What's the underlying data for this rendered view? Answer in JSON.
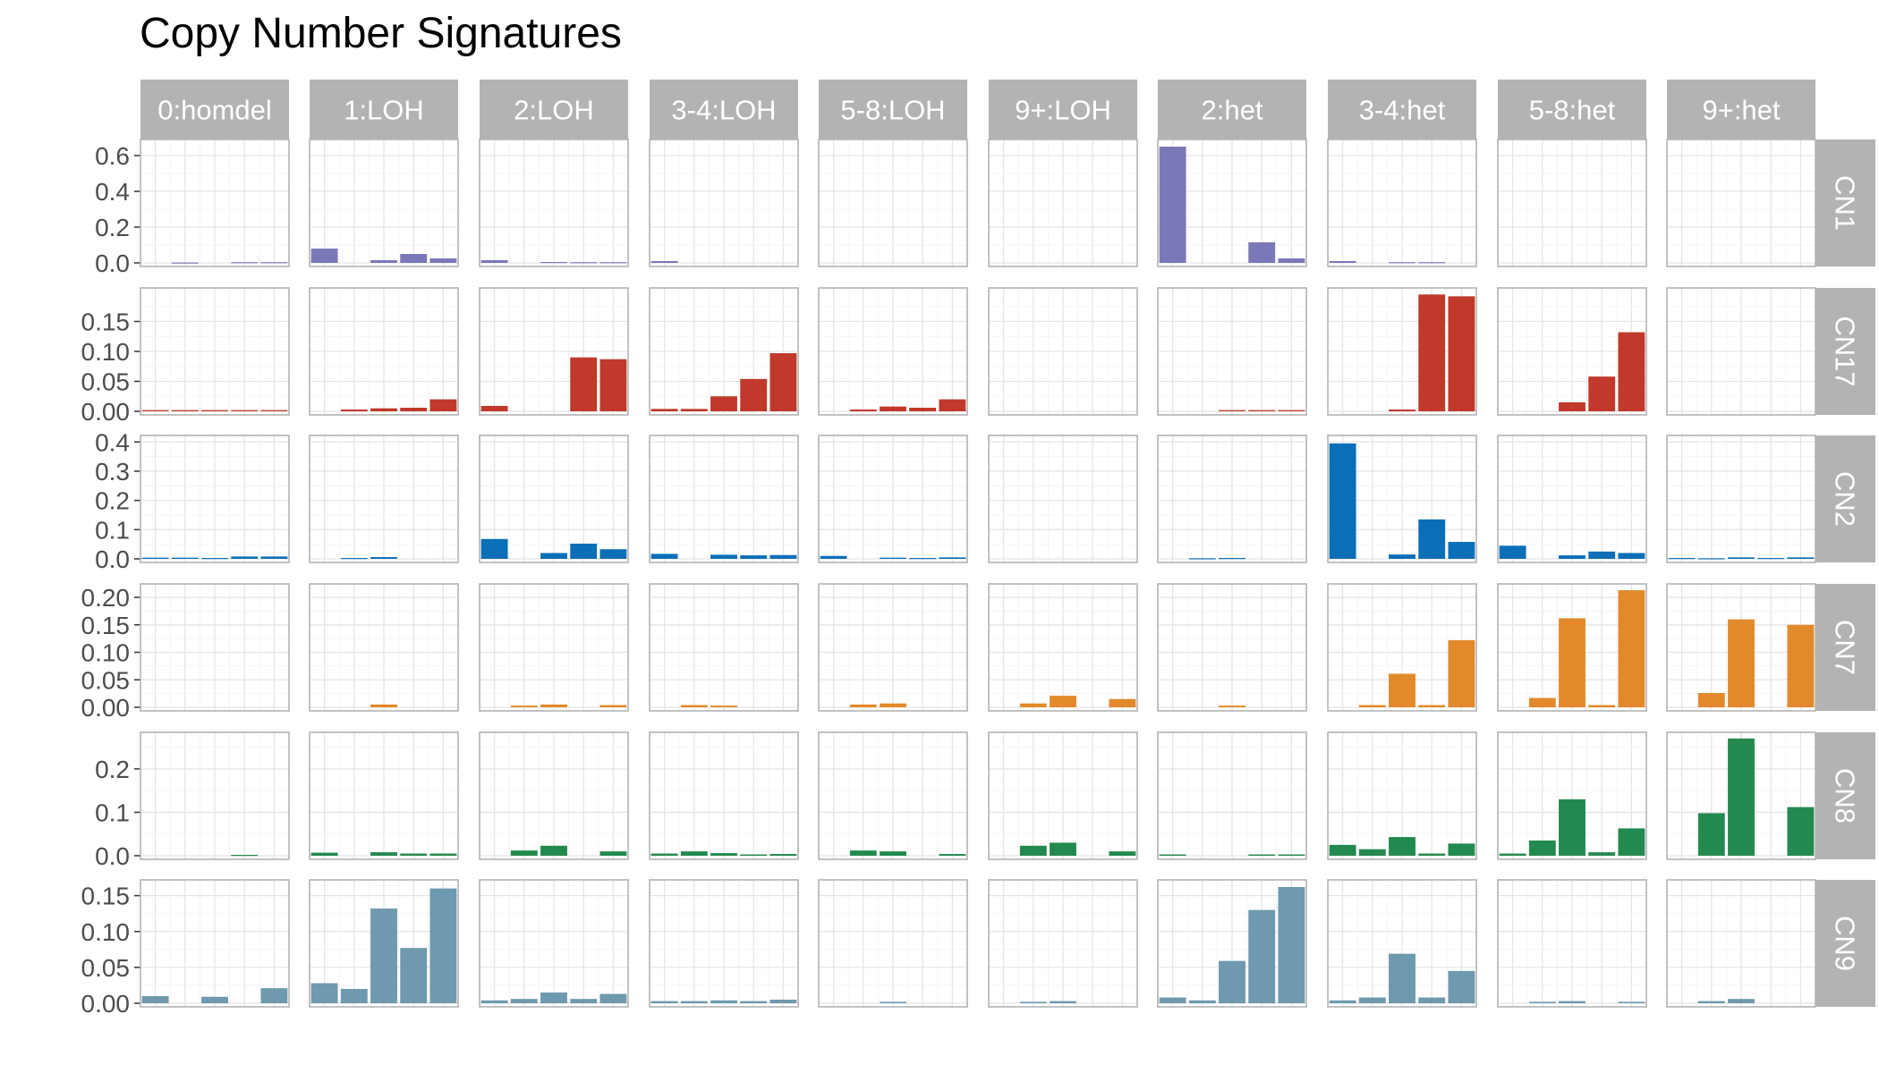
{
  "chart_data": {
    "type": "bar",
    "title": "Copy Number Signatures",
    "xlabel": "",
    "ylabel": "",
    "grid": true,
    "legend": "none",
    "panel_columns": [
      "0:homdel",
      "1:LOH",
      "2:LOH",
      "3-4:LOH",
      "5-8:LOH",
      "9+:LOH",
      "2:het",
      "3-4:het",
      "5-8:het",
      "9+:het"
    ],
    "rows": [
      {
        "name": "CN1",
        "color": "#7b78b8",
        "ylim": [
          0,
          0.67
        ],
        "ticks": [
          0,
          0.2,
          0.4,
          0.6
        ],
        "tick_labels": [
          "0.0",
          "0.2",
          "0.4",
          "0.6"
        ],
        "panels": [
          [
            0,
            0.002,
            0,
            0.004,
            0.004
          ],
          [
            0.08,
            0,
            0.015,
            0.05,
            0.025
          ],
          [
            0.015,
            0,
            0.005,
            0.004,
            0.004
          ],
          [
            0.01,
            0,
            0,
            0,
            0
          ],
          [
            0,
            0,
            0,
            0,
            0
          ],
          [
            0,
            0,
            0,
            0,
            0
          ],
          [
            0.65,
            0,
            0,
            0.115,
            0.025
          ],
          [
            0.01,
            0,
            0.004,
            0.004,
            0
          ],
          [
            0,
            0,
            0,
            0,
            0
          ],
          [
            0,
            0,
            0,
            0,
            0
          ]
        ]
      },
      {
        "name": "CN17",
        "color": "#c0392b",
        "ylim": [
          0,
          0.2
        ],
        "ticks": [
          0,
          0.05,
          0.1,
          0.15
        ],
        "tick_labels": [
          "0.00",
          "0.05",
          "0.10",
          "0.15"
        ],
        "panels": [
          [
            0.002,
            0.002,
            0.002,
            0.002,
            0.002
          ],
          [
            0,
            0.003,
            0.005,
            0.006,
            0.02
          ],
          [
            0.009,
            0,
            0,
            0.09,
            0.087
          ],
          [
            0.004,
            0.004,
            0.025,
            0.054,
            0.097
          ],
          [
            0,
            0.003,
            0.008,
            0.006,
            0.02
          ],
          [
            0,
            0,
            0,
            0,
            0
          ],
          [
            0,
            0,
            0.002,
            0.002,
            0.002
          ],
          [
            0,
            0,
            0.003,
            0.195,
            0.192
          ],
          [
            0,
            0,
            0.015,
            0.058,
            0.132
          ],
          [
            0,
            0,
            0,
            0,
            0
          ]
        ]
      },
      {
        "name": "CN2",
        "color": "#0b6fb8",
        "ylim": [
          0,
          0.41
        ],
        "ticks": [
          0,
          0.1,
          0.2,
          0.3,
          0.4
        ],
        "tick_labels": [
          "0.0",
          "0.1",
          "0.2",
          "0.3",
          "0.4"
        ],
        "panels": [
          [
            0.004,
            0.004,
            0.003,
            0.008,
            0.008
          ],
          [
            0,
            0.003,
            0.006,
            0,
            0
          ],
          [
            0.068,
            0,
            0.02,
            0.052,
            0.033
          ],
          [
            0.017,
            0,
            0.014,
            0.012,
            0.013
          ],
          [
            0.01,
            0,
            0.004,
            0.003,
            0.005
          ],
          [
            0,
            0,
            0,
            0,
            0
          ],
          [
            0,
            0.002,
            0.003,
            0,
            0
          ],
          [
            0.395,
            0,
            0.015,
            0.135,
            0.058
          ],
          [
            0.045,
            0,
            0.012,
            0.025,
            0.02
          ],
          [
            0.003,
            0.002,
            0.005,
            0.003,
            0.005
          ]
        ]
      },
      {
        "name": "CN7",
        "color": "#e28a2b",
        "ylim": [
          0,
          0.218
        ],
        "ticks": [
          0,
          0.05,
          0.1,
          0.15,
          0.2
        ],
        "tick_labels": [
          "0.00",
          "0.05",
          "0.10",
          "0.15",
          "0.20"
        ],
        "panels": [
          [
            0,
            0,
            0,
            0,
            0
          ],
          [
            0,
            0,
            0.005,
            0,
            0
          ],
          [
            0,
            0.003,
            0.005,
            0,
            0.004
          ],
          [
            0,
            0.004,
            0.003,
            0,
            0
          ],
          [
            0,
            0.005,
            0.007,
            0,
            0
          ],
          [
            0,
            0.007,
            0.021,
            0,
            0.015
          ],
          [
            0,
            0,
            0.003,
            0,
            0
          ],
          [
            0,
            0.004,
            0.061,
            0.004,
            0.122
          ],
          [
            0,
            0.017,
            0.162,
            0.004,
            0.213
          ],
          [
            0,
            0.026,
            0.16,
            0,
            0.15
          ]
        ]
      },
      {
        "name": "CN8",
        "color": "#238a4f",
        "ylim": [
          0,
          0.276
        ],
        "ticks": [
          0,
          0.1,
          0.2
        ],
        "tick_labels": [
          "0.0",
          "0.1",
          "0.2"
        ],
        "panels": [
          [
            0,
            0,
            0,
            0.002,
            0
          ],
          [
            0.007,
            0,
            0.008,
            0.005,
            0.005
          ],
          [
            0,
            0.012,
            0.023,
            0,
            0.01
          ],
          [
            0.005,
            0.01,
            0.006,
            0.003,
            0.004
          ],
          [
            0,
            0.012,
            0.01,
            0,
            0.004
          ],
          [
            0,
            0.023,
            0.03,
            0,
            0.01
          ],
          [
            0.003,
            0,
            0,
            0.003,
            0.003
          ],
          [
            0.025,
            0.015,
            0.043,
            0.005,
            0.028
          ],
          [
            0.005,
            0.035,
            0.13,
            0.008,
            0.063
          ],
          [
            0,
            0.098,
            0.27,
            0,
            0.112
          ]
        ]
      },
      {
        "name": "CN9",
        "color": "#6e99ae",
        "ylim": [
          0,
          0.167
        ],
        "ticks": [
          0,
          0.05,
          0.1,
          0.15
        ],
        "tick_labels": [
          "0.00",
          "0.05",
          "0.10",
          "0.15"
        ],
        "panels": [
          [
            0.01,
            0,
            0.009,
            0,
            0.021
          ],
          [
            0.028,
            0.02,
            0.132,
            0.077,
            0.16
          ],
          [
            0.004,
            0.006,
            0.015,
            0.006,
            0.013
          ],
          [
            0.003,
            0.003,
            0.004,
            0.003,
            0.005
          ],
          [
            0,
            0,
            0.002,
            0,
            0
          ],
          [
            0,
            0.002,
            0.003,
            0,
            0
          ],
          [
            0.008,
            0.004,
            0.059,
            0.13,
            0.162
          ],
          [
            0.004,
            0.008,
            0.069,
            0.008,
            0.045
          ],
          [
            0,
            0.002,
            0.003,
            0,
            0.002
          ],
          [
            0,
            0.003,
            0.006,
            0,
            0
          ]
        ]
      }
    ]
  }
}
